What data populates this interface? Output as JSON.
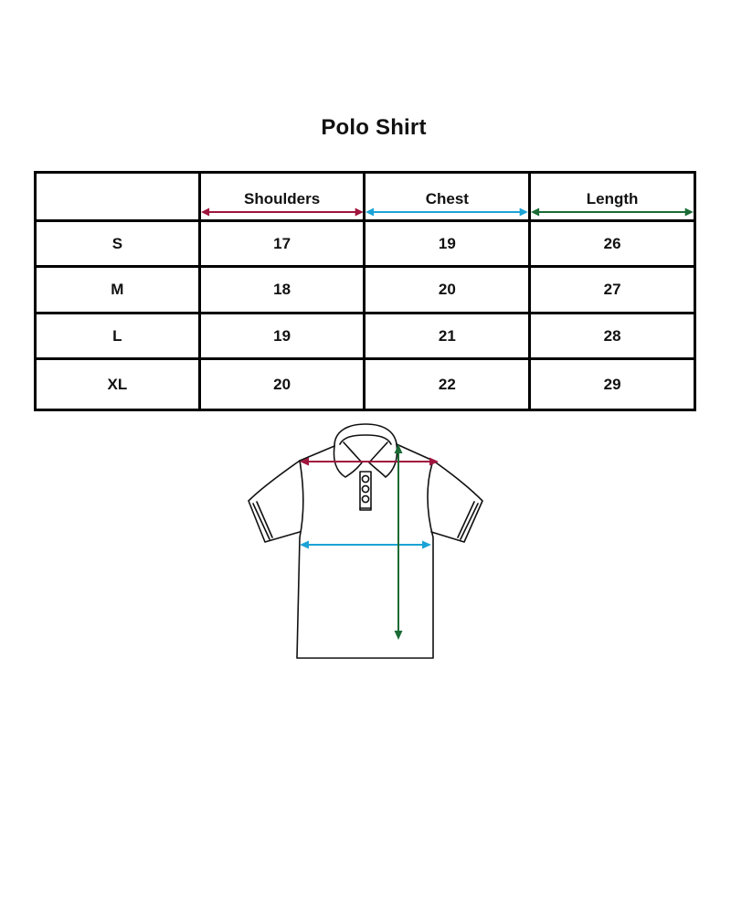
{
  "title": "Polo Shirt",
  "table": {
    "corner": "",
    "columns": [
      {
        "label": "Shoulders",
        "color": "#a0153e"
      },
      {
        "label": "Chest",
        "color": "#1ba3d6"
      },
      {
        "label": "Length",
        "color": "#1a6b34"
      }
    ],
    "rows": [
      {
        "size": "S",
        "values": [
          "17",
          "19",
          "26"
        ]
      },
      {
        "size": "M",
        "values": [
          "18",
          "20",
          "27"
        ]
      },
      {
        "size": "L",
        "values": [
          "19",
          "21",
          "28"
        ]
      },
      {
        "size": "XL",
        "values": [
          "20",
          "22",
          "29"
        ]
      }
    ]
  },
  "diagram": {
    "icon": "polo-shirt-icon",
    "measurements": [
      "shoulders",
      "chest",
      "length"
    ]
  }
}
